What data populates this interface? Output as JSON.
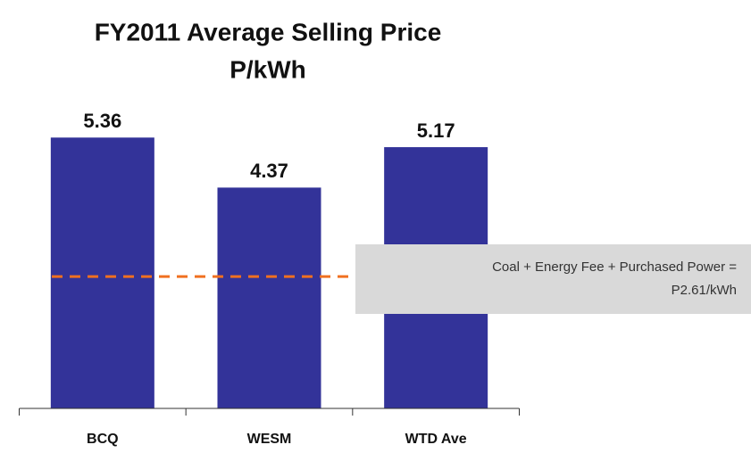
{
  "chart_data": {
    "type": "bar",
    "title": [
      "FY2011 Average Selling Price",
      "P/kWh"
    ],
    "categories": [
      "BCQ",
      "WESM",
      "WTD Ave"
    ],
    "values": [
      5.36,
      4.37,
      5.17
    ],
    "color": "#333399",
    "ylim": [
      0,
      6
    ],
    "reference_line": {
      "value": 2.61,
      "color": "#f07020"
    },
    "annotation": [
      "Coal + Energy Fee +  Purchased Power =",
      "P2.61/kWh"
    ]
  }
}
